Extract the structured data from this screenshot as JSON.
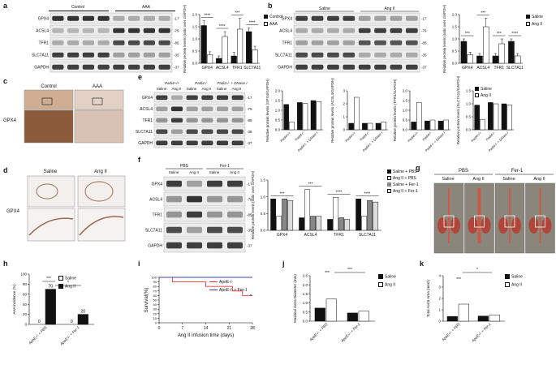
{
  "panels": {
    "a": {
      "label": "a",
      "groups": [
        "Control",
        "AAA"
      ],
      "rows": [
        "GPX4",
        "ACSL4",
        "TFR1",
        "SLC7A11",
        "GAPDH"
      ],
      "kda": [
        "-17",
        "-79",
        "-85",
        "-35",
        "-37"
      ],
      "chart_data": {
        "type": "bar",
        "categories": [
          "GPX4",
          "ACSL4",
          "TFR1",
          "SLC7A11"
        ],
        "series": [
          {
            "name": "Control",
            "values": [
              1.55,
              0.2,
              0.3,
              1.3
            ],
            "err": [
              0.2,
              0.1,
              0.15,
              0.15
            ]
          },
          {
            "name": "AAA",
            "values": [
              0.35,
              1.1,
              1.4,
              0.55
            ],
            "err": [
              0.12,
              0.2,
              0.45,
              0.15
            ]
          }
        ],
        "sig": [
          "****",
          "****",
          "***",
          "****"
        ],
        "ylabel": "Relative protein levels (ratio over GAPDH)",
        "yticks": [
          "0.0",
          "0.5",
          "1.0",
          "1.5",
          "2.0"
        ],
        "ylim": [
          0,
          2.0
        ]
      }
    },
    "b": {
      "label": "b",
      "groups": [
        "Saline",
        "Ang II"
      ],
      "rows": [
        "GPX4",
        "ACSL4",
        "TFR1",
        "SLC7A11",
        "GAPDH"
      ],
      "kda": [
        "-17",
        "-79",
        "-85",
        "-35",
        "-37"
      ],
      "chart_data": {
        "type": "bar",
        "categories": [
          "GPX4",
          "ACSL4",
          "TFR1",
          "SLC7A11"
        ],
        "series": [
          {
            "name": "Saline",
            "values": [
              0.9,
              0.3,
              0.3,
              0.9
            ],
            "err": [
              0.1,
              0.1,
              0.1,
              0.1
            ]
          },
          {
            "name": "Ang II",
            "values": [
              0.35,
              1.5,
              0.8,
              0.3
            ],
            "err": [
              0.1,
              0.35,
              0.2,
              0.1
            ]
          }
        ],
        "sig": [
          "***",
          "***",
          "***",
          "****"
        ],
        "ylabel": "Relative protein levels (ratio over GAPDH)",
        "yticks": [
          "0.0",
          "0.5",
          "1.0",
          "1.5",
          "2.0"
        ],
        "ylim": [
          0,
          2.0
        ]
      }
    },
    "c": {
      "label": "c",
      "stain": "GPX4",
      "groups": [
        "Control",
        "AAA"
      ]
    },
    "d": {
      "label": "d",
      "stain": "GPX4",
      "groups": [
        "Saline",
        "Ang II"
      ]
    },
    "e": {
      "label": "e",
      "genotypes": [
        "Padi4+/+",
        "Padi4-/-",
        "Padi4-/- + DNase I"
      ],
      "lanes": [
        "Saline",
        "Ang II",
        "Saline",
        "Ang II",
        "Saline",
        "Ang II"
      ],
      "rows": [
        "GPX4",
        "ACSL4",
        "TFR1",
        "SLC7A11",
        "GAPDH"
      ],
      "kda": [
        "-17",
        "-79",
        "-85",
        "-35",
        "-37"
      ],
      "charts": [
        {
          "type": "bar",
          "ylabel": "Relative protein levels (GPX4/GAPDH)",
          "yticks": [
            "0.0",
            "0.5",
            "1.0",
            "1.5",
            "2.0"
          ],
          "ylim": [
            0,
            2.0
          ],
          "categories": [
            "Padi4+/+",
            "Padi4-/-",
            "Padi4-/- + DNase I"
          ],
          "series": [
            {
              "name": "Saline",
              "values": [
                1.3,
                1.4,
                1.5
              ]
            },
            {
              "name": "Ang II",
              "values": [
                0.4,
                1.35,
                1.45
              ]
            }
          ],
          "sig": [
            "****",
            "****",
            "****"
          ]
        },
        {
          "type": "bar",
          "ylabel": "Relative protein levels (ACSL4/GAPDH)",
          "yticks": [
            "0",
            "1",
            "2",
            "3"
          ],
          "ylim": [
            0,
            3
          ],
          "categories": [
            "Padi4+/+",
            "Padi4-/-",
            "Padi4-/- + DNase I"
          ],
          "series": [
            {
              "name": "Saline",
              "values": [
                0.5,
                0.5,
                0.5
              ]
            },
            {
              "name": "Ang II",
              "values": [
                2.5,
                0.5,
                0.6
              ]
            }
          ],
          "sig": [
            "****",
            "****",
            "****"
          ]
        },
        {
          "type": "bar",
          "ylabel": "Relative protein levels (TFR1/GAPDH)",
          "yticks": [
            "0.0",
            "0.5",
            "1.0",
            "1.5",
            "2.0"
          ],
          "ylim": [
            0,
            2.0
          ],
          "categories": [
            "Padi4+/+",
            "Padi4-/-",
            "Padi4-/- + DNase I"
          ],
          "series": [
            {
              "name": "Saline",
              "values": [
                0.4,
                0.45,
                0.45
              ]
            },
            {
              "name": "Ang II",
              "values": [
                1.4,
                0.5,
                0.5
              ]
            }
          ],
          "sig": [
            "****",
            "****",
            "****"
          ]
        },
        {
          "type": "bar",
          "ylabel": "Relative protein levels (SLC7A11/GAPDH)",
          "yticks": [
            "0.0",
            "0.5",
            "1.0",
            "1.5"
          ],
          "ylim": [
            0,
            1.5
          ],
          "categories": [
            "Padi4+/+",
            "Padi4-/-",
            "Padi4-/- + DNase I"
          ],
          "series": [
            {
              "name": "Saline",
              "values": [
                0.95,
                1.05,
                1.0
              ]
            },
            {
              "name": "Ang II",
              "values": [
                0.4,
                1.0,
                0.95
              ]
            }
          ],
          "sig": [
            "***",
            "****",
            "***"
          ]
        }
      ],
      "legend": [
        "Saline",
        "Ang II"
      ]
    },
    "f": {
      "label": "f",
      "groups": [
        "PBS",
        "Fer-1"
      ],
      "lanes": [
        "Saline",
        "Ang II",
        "Saline",
        "Ang II"
      ],
      "rows": [
        "GPX4",
        "ACSL4",
        "TFR1",
        "SLC7A11",
        "GAPDH"
      ],
      "kda": [
        "-17",
        "-79",
        "-85",
        "-35",
        "-37"
      ],
      "chart_data": {
        "type": "bar",
        "categories": [
          "GPX4",
          "ACSL4",
          "TFR1",
          "SLC7A11"
        ],
        "series": [
          {
            "name": "Saline + PBS",
            "values": [
              1.0,
              0.4,
              0.35,
              1.0
            ]
          },
          {
            "name": "Ang II + PBS",
            "values": [
              0.45,
              1.3,
              1.05,
              0.45
            ]
          },
          {
            "name": "Saline + Fer-1",
            "values": [
              1.0,
              0.45,
              0.4,
              0.95
            ]
          },
          {
            "name": "Ang II + Fer-1",
            "values": [
              0.95,
              0.45,
              0.35,
              0.9
            ]
          }
        ],
        "sig": [
          "***",
          "***",
          "****",
          "****"
        ],
        "ylabel": "Relative protein levels (ratio over GAPDH)",
        "yticks": [
          "0.0",
          "0.5",
          "1.0",
          "1.5"
        ],
        "ylim": [
          0,
          1.6
        ]
      }
    },
    "g": {
      "label": "g",
      "groups": [
        "PBS",
        "Fer-1"
      ],
      "subgroups": [
        "Saline",
        "Ang II",
        "Saline",
        "Ang II"
      ]
    },
    "h": {
      "label": "h",
      "chart_data": {
        "type": "bar",
        "categories": [
          "ApoE-/- + PBS",
          "ApoE-/- + Fer-1"
        ],
        "series": [
          {
            "name": "Saline",
            "values": [
              0,
              0
            ]
          },
          {
            "name": "Ang II",
            "values": [
              70,
              20
            ]
          }
        ],
        "data_labels": [
          "0",
          "70",
          "0",
          "20"
        ],
        "ylabel": "AAA incidence (%)",
        "yticks": [
          "0",
          "20",
          "40",
          "60",
          "80",
          "100"
        ],
        "ylim": [
          0,
          100
        ],
        "sig": [
          "***",
          "*"
        ]
      }
    },
    "i": {
      "label": "i",
      "chart_data": {
        "type": "line",
        "series": [
          {
            "name": "ApoE-/-",
            "x": [
              0,
              4,
              4,
              14,
              14,
              22,
              22,
              25,
              25,
              28
            ],
            "y": [
              100,
              100,
              90,
              90,
              80,
              80,
              70,
              70,
              60,
              60
            ]
          },
          {
            "name": "ApoE-/- + Fer-1",
            "x": [
              0,
              28
            ],
            "y": [
              100,
              100
            ]
          }
        ],
        "xlabel": "Ang II infusion time (days)",
        "ylabel": "Survival(%)",
        "xticks": [
          "0",
          "7",
          "14",
          "21",
          "28"
        ],
        "yticks": [
          "0",
          "10",
          "20",
          "30",
          "40",
          "50",
          "60",
          "70",
          "80",
          "90",
          "100"
        ],
        "xlim": [
          0,
          28
        ],
        "ylim": [
          0,
          100
        ],
        "sig": "*"
      }
    },
    "j": {
      "label": "j",
      "chart_data": {
        "type": "bar",
        "categories": [
          "ApoE-/- + PBS",
          "ApoE-/- + Fer-1"
        ],
        "series": [
          {
            "name": "Saline",
            "values": [
              0.72,
              0.45
            ]
          },
          {
            "name": "Ang II",
            "values": [
              1.22,
              0.55
            ]
          }
        ],
        "ylabel": "Maximal Aorta Diameter (mm)",
        "yticks": [
          "0.0",
          "0.5",
          "1.0",
          "1.5",
          "2.0",
          "2.5"
        ],
        "ylim": [
          0,
          2.5
        ],
        "sig": [
          "***",
          "***"
        ]
      }
    },
    "k": {
      "label": "k",
      "chart_data": {
        "type": "bar",
        "categories": [
          "ApoE-/- + PBS",
          "ApoE-/- + Fer-1"
        ],
        "series": [
          {
            "name": "Saline",
            "values": [
              0.42,
              0.45
            ]
          },
          {
            "name": "Ang II",
            "values": [
              1.5,
              0.55
            ]
          }
        ],
        "ylabel": "Total Aorta Area (mm2)",
        "yticks": [
          "0",
          "1",
          "2",
          "3",
          "4"
        ],
        "ylim": [
          0,
          4
        ],
        "sig": [
          "***",
          "*"
        ]
      }
    }
  }
}
